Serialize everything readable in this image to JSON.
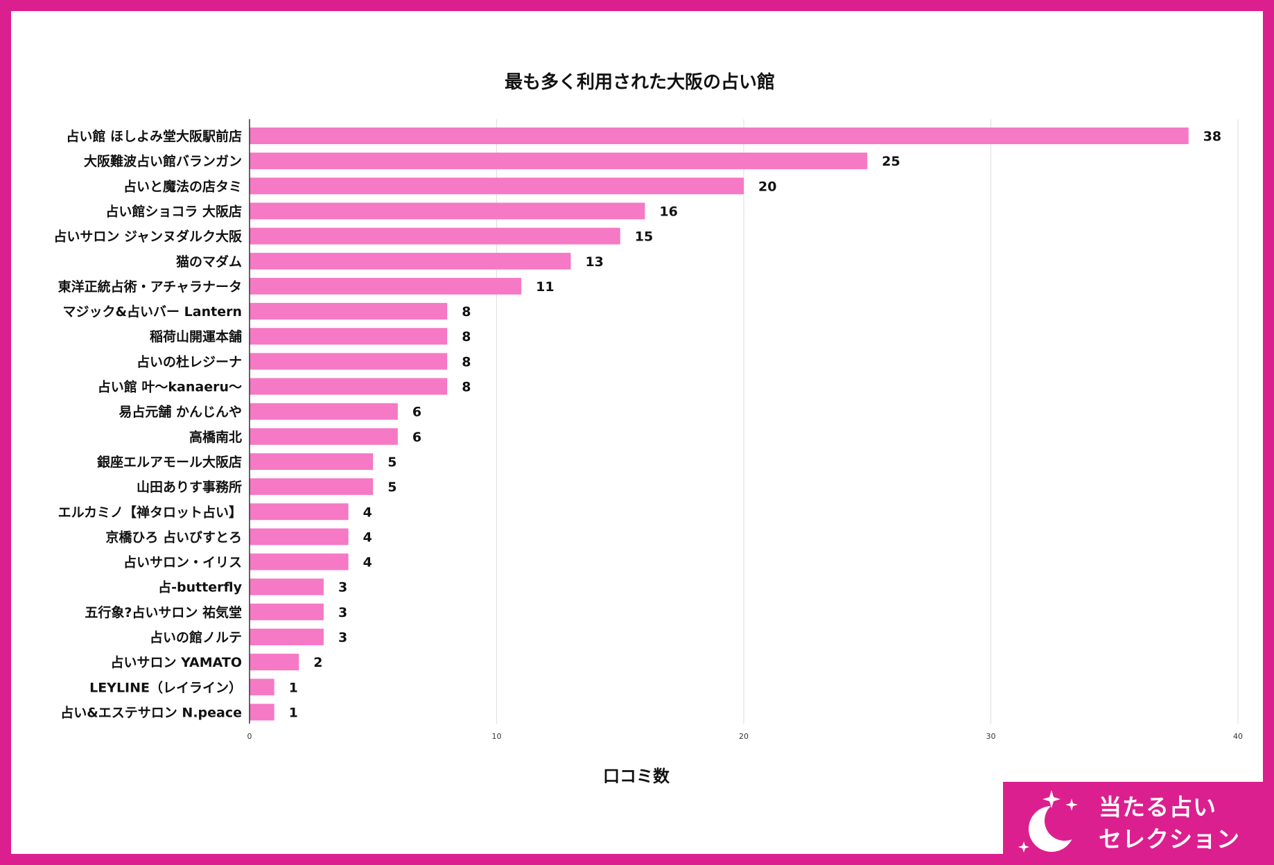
{
  "colors": {
    "frame": "#dc1f8e",
    "bar": "#f579c5",
    "grid": "#dddddd",
    "text": "#111111",
    "logo_bg": "#dc1f8e"
  },
  "chart_data": {
    "type": "bar",
    "orientation": "horizontal",
    "title": "最も多く利用された大阪の占い館",
    "xlabel": "口コミ数",
    "ylabel": "",
    "xlim": [
      0,
      40
    ],
    "xticks": [
      0,
      10,
      20,
      30,
      40
    ],
    "grid": true,
    "categories": [
      "占い館 ほしよみ堂大阪駅前店",
      "大阪難波占い館バランガン",
      "占いと魔法の店タミ",
      "占い館ショコラ 大阪店",
      "占いサロン ジャンヌダルク大阪",
      "猫のマダム",
      "東洋正統占術・アチャラナータ",
      "マジック&占いバー Lantern",
      "稲荷山開運本舗",
      "占いの杜レジーナ",
      "占い館 叶〜kanaeru〜",
      "易占元舗 かんじんや",
      "高橋南北",
      "銀座エルアモール大阪店",
      "山田ありす事務所",
      "エルカミノ【禅タロット占い】",
      "京橋ひろ 占いびすとろ",
      "占いサロン・イリス",
      "占-butterfly",
      "五行象?占いサロン 祐気堂",
      "占いの館ノルテ",
      "占いサロン YAMATO",
      "LEYLINE（レイライン）",
      "占い&エステサロン N.peace"
    ],
    "values": [
      38,
      25,
      20,
      16,
      15,
      13,
      11,
      8,
      8,
      8,
      8,
      6,
      6,
      5,
      5,
      4,
      4,
      4,
      3,
      3,
      3,
      2,
      1,
      1
    ]
  },
  "logo": {
    "line1": "当たる占い",
    "line2": "セレクション",
    "icon": "crescent-moon-sparkles-icon"
  }
}
